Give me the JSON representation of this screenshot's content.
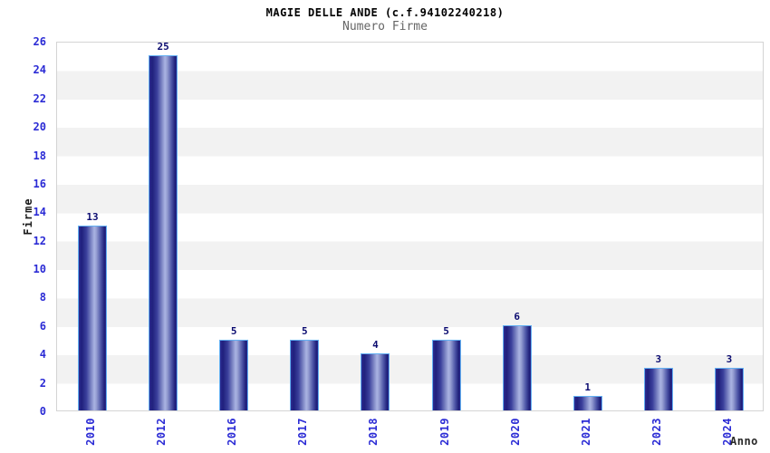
{
  "header": {
    "title": "MAGIE DELLE ANDE (c.f.94102240218)",
    "subtitle": "Numero Firme"
  },
  "axes": {
    "y_label": "Firme",
    "x_label": "Anno",
    "y_ticks": [
      0,
      2,
      4,
      6,
      8,
      10,
      12,
      14,
      16,
      18,
      20,
      22,
      24,
      26
    ]
  },
  "chart_data": {
    "type": "bar",
    "title": "MAGIE DELLE ANDE (c.f.94102240218)",
    "subtitle": "Numero Firme",
    "categories": [
      "2010",
      "2012",
      "2016",
      "2017",
      "2018",
      "2019",
      "2020",
      "2021",
      "2023",
      "2024"
    ],
    "values": [
      13,
      25,
      5,
      5,
      4,
      5,
      6,
      1,
      3,
      3
    ],
    "xlabel": "Anno",
    "ylabel": "Firme",
    "ylim": [
      0,
      26
    ],
    "ytick_step": 2,
    "grid": "horizontal-bands-alternating",
    "legend": "none",
    "bar_value_labels_shown": true
  },
  "colors": {
    "tick_label_blue": "#2b2bd5",
    "value_label_navy": "#0b0b70",
    "title_black": "#000000",
    "subtitle_gray": "#666666",
    "band_gray": "#f2f2f2",
    "band_white": "#ffffff",
    "plot_border_gray": "#d4d4d4",
    "bar_border_lightblue": "#63b0f2",
    "bar_dark_navy": "#1e1e78",
    "bar_highlight": "#aab3e2"
  }
}
